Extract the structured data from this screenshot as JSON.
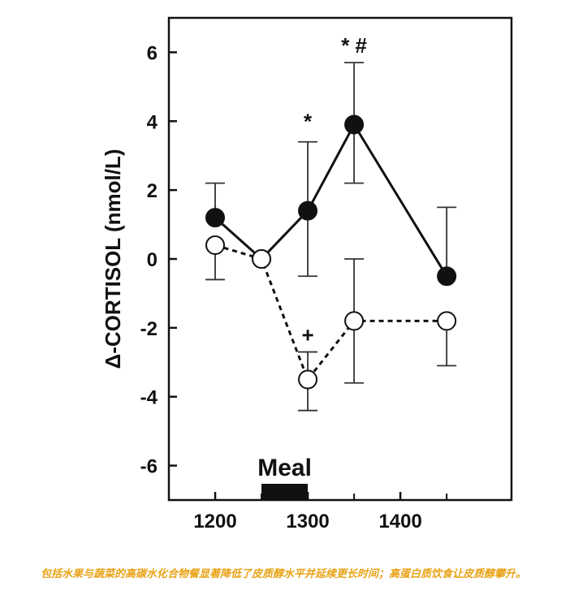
{
  "chart_data": {
    "type": "line",
    "title": "",
    "xlabel": "",
    "ylabel": "Δ-CORTISOL (nmol/L)",
    "x_ticks": [
      "1200",
      "1300",
      "1400"
    ],
    "y_ticks": [
      "6",
      "4",
      "2",
      "0",
      "-2",
      "-4",
      "-6"
    ],
    "xlim": [
      1150,
      1520
    ],
    "ylim": [
      -7,
      7
    ],
    "grid": false,
    "meal": {
      "label": "Meal",
      "start": 1250,
      "end": 1300
    },
    "series": [
      {
        "marker": "filled-circle",
        "line_style": "solid",
        "x": [
          1200,
          1250,
          1300,
          1350,
          1450
        ],
        "y": [
          1.2,
          0,
          1.4,
          3.9,
          -0.5
        ],
        "err_upper": [
          2.2,
          null,
          3.4,
          5.7,
          1.5
        ],
        "err_lower": [
          null,
          null,
          -0.5,
          2.2,
          null
        ]
      },
      {
        "marker": "open-circle",
        "line_style": "dashed",
        "x": [
          1200,
          1250,
          1300,
          1350,
          1450
        ],
        "y": [
          0.4,
          0,
          -3.5,
          -1.8,
          -1.8
        ],
        "err_upper": [
          null,
          null,
          -2.7,
          0,
          null
        ],
        "err_lower": [
          -0.6,
          null,
          -4.4,
          -3.6,
          -3.1
        ]
      }
    ],
    "annotations": [
      {
        "text": "*",
        "x": 1300,
        "y": 4.0
      },
      {
        "text": "* #",
        "x": 1350,
        "y": 6.2
      },
      {
        "text": "+",
        "x": 1300,
        "y": -2.2
      }
    ]
  },
  "caption": "包括水果与蔬菜的高碳水化合物餐显著降低了皮质醇水平并延续更长时间；高蛋白质饮食让皮质醇攀升。",
  "colors": {
    "caption": "#e8a317",
    "ink": "#111111"
  }
}
